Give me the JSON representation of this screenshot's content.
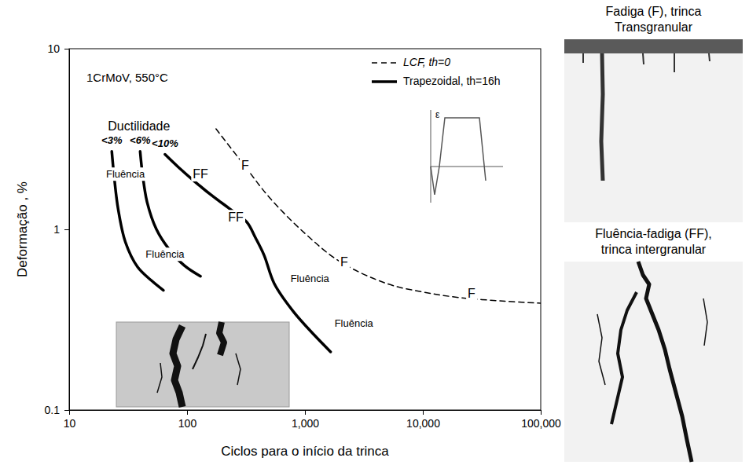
{
  "chart_data": {
    "type": "line",
    "title": "1CrMoV, 550°C",
    "x_label": "Ciclos para o início da trinca",
    "y_label": "Deformação , %",
    "log": true,
    "grid": false,
    "legend": "top-right",
    "xlim": [
      10,
      100000
    ],
    "ylim": [
      0.1,
      10
    ],
    "xticks": [
      10,
      100,
      {
        "value": 1000,
        "label": "1,000"
      },
      {
        "value": 10000,
        "label": "10,000"
      },
      {
        "value": 100000,
        "label": "100,000"
      }
    ],
    "yticks": [
      0.1,
      1,
      10
    ],
    "ductility_title": "Ductilidade",
    "waveform_label": "ε",
    "series": [
      {
        "name": "LCF, th=0",
        "color": "#000000",
        "line_style": "dashed",
        "x": [
          176,
          300,
          500,
          1000,
          2000,
          5000,
          10000,
          20000,
          50000,
          100000
        ],
        "values": [
          3.6,
          2.3,
          1.5,
          0.95,
          0.66,
          0.5,
          0.45,
          0.42,
          0.4,
          0.39
        ]
      },
      {
        "name": "Trapezoidal, th=16h",
        "label": "<3%",
        "color": "#000000",
        "line_style": "solid",
        "x": [
          23,
          24,
          26,
          30,
          38,
          50,
          63
        ],
        "values": [
          2.7,
          2.0,
          1.3,
          0.85,
          0.62,
          0.52,
          0.46
        ]
      },
      {
        "name": "Trapezoidal, th=16h",
        "label": "<6%",
        "color": "#000000",
        "line_style": "solid",
        "x": [
          40,
          42,
          46,
          55,
          70,
          95,
          130
        ],
        "values": [
          2.7,
          2.0,
          1.4,
          1.0,
          0.78,
          0.63,
          0.55
        ]
      },
      {
        "name": "Trapezoidal, th=16h",
        "label": "<10%",
        "color": "#000000",
        "line_style": "solid",
        "x": [
          65,
          85,
          115,
          160,
          230,
          320,
          380,
          450,
          550,
          800,
          1200,
          1650
        ],
        "values": [
          2.6,
          2.2,
          1.85,
          1.55,
          1.3,
          1.1,
          0.9,
          0.72,
          0.5,
          0.35,
          0.26,
          0.21
        ]
      }
    ],
    "annotations": [
      {
        "text": "Fluência",
        "x": 30,
        "y": 2.0
      },
      {
        "text": "Fluência",
        "x": 65,
        "y": 0.72
      },
      {
        "text": "FF",
        "x": 130,
        "y": 2.0
      },
      {
        "text": "FF",
        "x": 259,
        "y": 1.15
      },
      {
        "text": "Fluência",
        "x": 1100,
        "y": 0.53
      },
      {
        "text": "Fluência",
        "x": 2600,
        "y": 0.3
      },
      {
        "text": "F",
        "x": 311,
        "y": 2.23
      },
      {
        "text": "F",
        "x": 2154,
        "y": 0.65
      },
      {
        "text": "F",
        "x": 25900,
        "y": 0.435
      }
    ]
  },
  "panels": [
    {
      "title": [
        "Fadiga (F), trinca",
        "Transgranular"
      ]
    },
    {
      "title": [
        "Fluência-fadiga (FF),",
        "trinca intergranular"
      ]
    }
  ]
}
